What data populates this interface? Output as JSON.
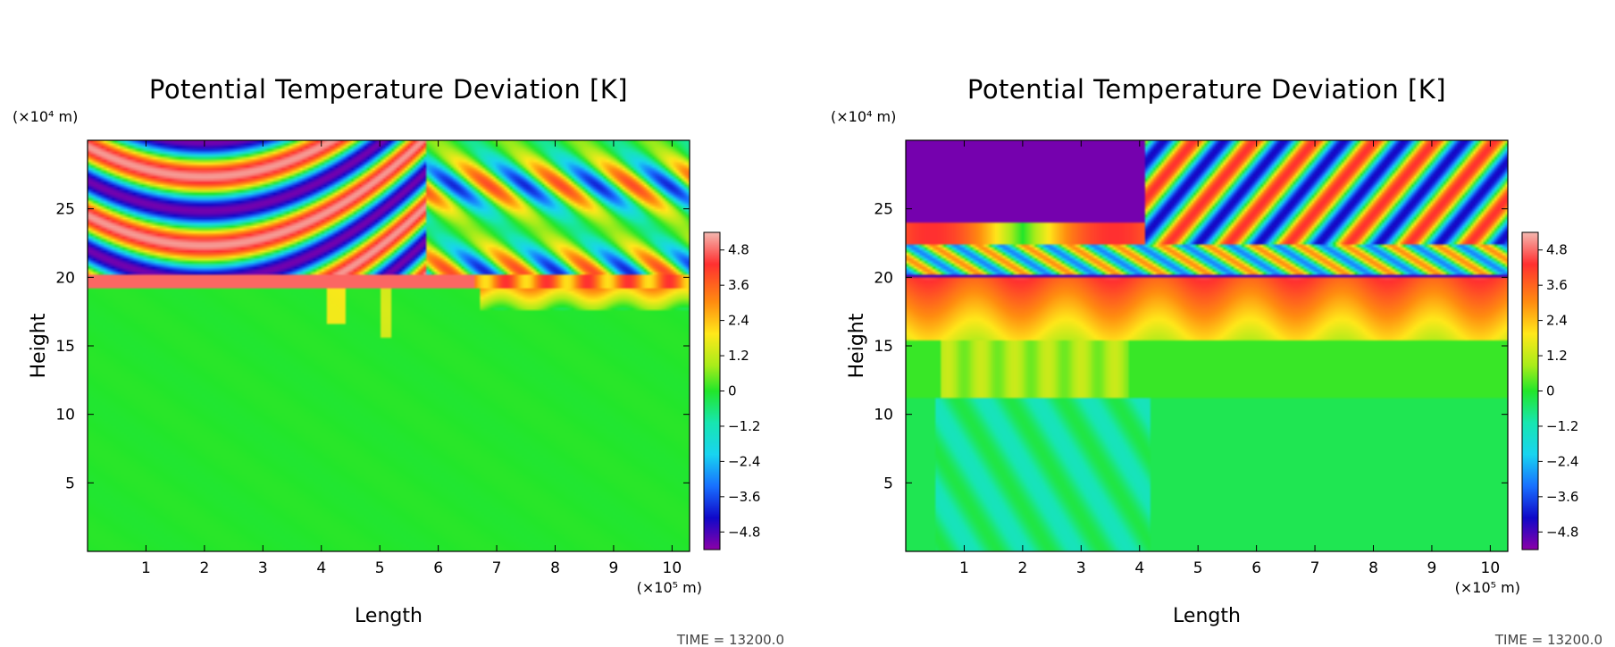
{
  "chart_data": [
    {
      "type": "heatmap",
      "title": "Potential Temperature Deviation [K]",
      "xlabel": "Length",
      "ylabel": "Height",
      "x_unit": "(×10⁵ m)",
      "y_unit": "(×10⁴ m)",
      "xlim": [
        0,
        10.3
      ],
      "ylim": [
        0,
        30
      ],
      "x_ticks": [
        "1",
        "2",
        "3",
        "4",
        "5",
        "6",
        "7",
        "8",
        "9",
        "10"
      ],
      "y_ticks": [
        "5",
        "10",
        "15",
        "20",
        "25"
      ],
      "colorbar": {
        "min": -5.4,
        "max": 5.4,
        "ticks": [
          "4.8",
          "3.6",
          "2.4",
          "1.2",
          "0",
          "−1.2",
          "−2.4",
          "−3.6",
          "−4.8"
        ]
      },
      "time_label": "TIME = 13200.0",
      "regions": {
        "lower": "near-zero deviation below ~19.5 (×10⁴ m), weak positive patches near x=4–5",
        "tropopause_band": "strong positive band (2.4–4.8) at ~19–20 for x>6.7",
        "upper": "alternating positive/negative arched wave bands centred near x=2, oblique wave fans for x>6"
      },
      "colors": {
        "positive_max": "#f4b8b0",
        "negative_max": "#8b00a8",
        "neutral": "#22e62a"
      }
    },
    {
      "type": "heatmap",
      "title": "Potential Temperature Deviation [K]",
      "xlabel": "Length",
      "ylabel": "Height",
      "x_unit": "(×10⁵ m)",
      "y_unit": "(×10⁴ m)",
      "xlim": [
        0,
        10.3
      ],
      "ylim": [
        0,
        30
      ],
      "x_ticks": [
        "1",
        "2",
        "3",
        "4",
        "5",
        "6",
        "7",
        "8",
        "9",
        "10"
      ],
      "y_ticks": [
        "5",
        "10",
        "15",
        "20",
        "25"
      ],
      "colorbar": {
        "min": -5.4,
        "max": 5.4,
        "ticks": [
          "4.8",
          "3.6",
          "2.4",
          "1.2",
          "0",
          "−1.2",
          "−2.4",
          "−3.6",
          "−4.8"
        ]
      },
      "time_label": "TIME = 13200.0",
      "regions": {
        "lower": "near-zero with slight negative below ~11 around x=1–4, yellowish plume near x=2–3.5 at 11–15",
        "tropopause_band": "positive band (1.2–3.6) at ~15–20 across most of domain",
        "upper": "large negative (−4.8) block x=0–4 above ~24, oblique wave fans spreading outward"
      },
      "colors": {
        "positive_max": "#f4b8b0",
        "negative_max": "#8b00a8",
        "neutral": "#22e62a"
      }
    }
  ]
}
